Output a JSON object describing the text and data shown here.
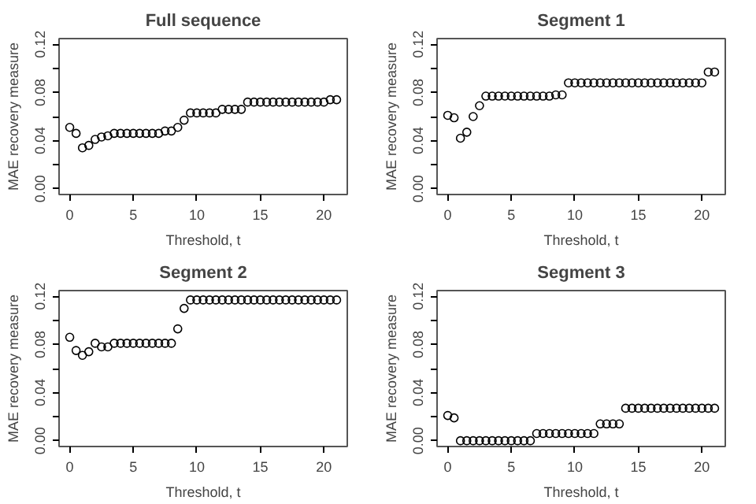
{
  "chart_data": [
    {
      "type": "scatter",
      "title": "Full sequence",
      "xlabel": "Threshold, t",
      "ylabel": "MAE recovery measure",
      "marker": "circle",
      "grid": false,
      "xlim": [
        -0.84,
        21.84
      ],
      "ylim": [
        -0.0048,
        0.1248
      ],
      "xticks": [
        0,
        5,
        10,
        15,
        20
      ],
      "yticks": [
        {
          "value": 0,
          "label": "0.00"
        },
        {
          "value": 0.02,
          "label": null
        },
        {
          "value": 0.04,
          "label": "0.04"
        },
        {
          "value": 0.06,
          "label": null
        },
        {
          "value": 0.08,
          "label": "0.08"
        },
        {
          "value": 0.1,
          "label": null
        },
        {
          "value": 0.12,
          "label": "0.12"
        }
      ],
      "series": [
        {
          "color": "#000000",
          "x": [
            0,
            0.5,
            1,
            1.5,
            2,
            2.5,
            3,
            3.5,
            4,
            4.5,
            5,
            5.5,
            6,
            6.5,
            7,
            7.5,
            8,
            8.5,
            9,
            9.5,
            10,
            10.5,
            11,
            11.5,
            12,
            12.5,
            13,
            13.5,
            14,
            14.5,
            15,
            15.5,
            16,
            16.5,
            17,
            17.5,
            18,
            18.5,
            19,
            19.5,
            20,
            20.5,
            21
          ],
          "values": [
            0.051,
            0.046,
            0.034,
            0.036,
            0.041,
            0.043,
            0.044,
            0.046,
            0.046,
            0.046,
            0.046,
            0.046,
            0.046,
            0.046,
            0.046,
            0.048,
            0.048,
            0.051,
            0.057,
            0.063,
            0.063,
            0.063,
            0.063,
            0.063,
            0.066,
            0.066,
            0.066,
            0.066,
            0.072,
            0.072,
            0.072,
            0.072,
            0.072,
            0.072,
            0.072,
            0.072,
            0.072,
            0.072,
            0.072,
            0.072,
            0.072,
            0.074,
            0.074
          ]
        }
      ]
    },
    {
      "type": "scatter",
      "title": "Segment 1",
      "xlabel": "Threshold, t",
      "ylabel": "MAE recovery measure",
      "marker": "circle",
      "grid": false,
      "xlim": [
        -0.84,
        21.84
      ],
      "ylim": [
        -0.0048,
        0.1248
      ],
      "xticks": [
        0,
        5,
        10,
        15,
        20
      ],
      "yticks": [
        {
          "value": 0,
          "label": "0.00"
        },
        {
          "value": 0.02,
          "label": null
        },
        {
          "value": 0.04,
          "label": "0.04"
        },
        {
          "value": 0.06,
          "label": null
        },
        {
          "value": 0.08,
          "label": "0.08"
        },
        {
          "value": 0.1,
          "label": null
        },
        {
          "value": 0.12,
          "label": "0.12"
        }
      ],
      "series": [
        {
          "color": "#000000",
          "x": [
            0,
            0.5,
            1,
            1.5,
            2,
            2.5,
            3,
            3.5,
            4,
            4.5,
            5,
            5.5,
            6,
            6.5,
            7,
            7.5,
            8,
            8.5,
            9,
            9.5,
            10,
            10.5,
            11,
            11.5,
            12,
            12.5,
            13,
            13.5,
            14,
            14.5,
            15,
            15.5,
            16,
            16.5,
            17,
            17.5,
            18,
            18.5,
            19,
            19.5,
            20,
            20.5,
            21
          ],
          "values": [
            0.061,
            0.059,
            0.042,
            0.047,
            0.06,
            0.069,
            0.077,
            0.077,
            0.077,
            0.077,
            0.077,
            0.077,
            0.077,
            0.077,
            0.077,
            0.077,
            0.077,
            0.078,
            0.078,
            0.088,
            0.088,
            0.088,
            0.088,
            0.088,
            0.088,
            0.088,
            0.088,
            0.088,
            0.088,
            0.088,
            0.088,
            0.088,
            0.088,
            0.088,
            0.088,
            0.088,
            0.088,
            0.088,
            0.088,
            0.088,
            0.088,
            0.097,
            0.097
          ]
        }
      ]
    },
    {
      "type": "scatter",
      "title": "Segment 2",
      "xlabel": "Threshold, t",
      "ylabel": "MAE recovery measure",
      "marker": "circle",
      "grid": false,
      "xlim": [
        -0.84,
        21.84
      ],
      "ylim": [
        -0.0048,
        0.1248
      ],
      "xticks": [
        0,
        5,
        10,
        15,
        20
      ],
      "yticks": [
        {
          "value": 0,
          "label": "0.00"
        },
        {
          "value": 0.02,
          "label": null
        },
        {
          "value": 0.04,
          "label": "0.04"
        },
        {
          "value": 0.06,
          "label": null
        },
        {
          "value": 0.08,
          "label": "0.08"
        },
        {
          "value": 0.1,
          "label": null
        },
        {
          "value": 0.12,
          "label": "0.12"
        }
      ],
      "series": [
        {
          "color": "#000000",
          "x": [
            0,
            0.5,
            1,
            1.5,
            2,
            2.5,
            3,
            3.5,
            4,
            4.5,
            5,
            5.5,
            6,
            6.5,
            7,
            7.5,
            8,
            8.5,
            9,
            9.5,
            10,
            10.5,
            11,
            11.5,
            12,
            12.5,
            13,
            13.5,
            14,
            14.5,
            15,
            15.5,
            16,
            16.5,
            17,
            17.5,
            18,
            18.5,
            19,
            19.5,
            20,
            20.5,
            21
          ],
          "values": [
            0.086,
            0.075,
            0.071,
            0.074,
            0.081,
            0.078,
            0.078,
            0.081,
            0.081,
            0.081,
            0.081,
            0.081,
            0.081,
            0.081,
            0.081,
            0.081,
            0.081,
            0.093,
            0.11,
            0.117,
            0.117,
            0.117,
            0.117,
            0.117,
            0.117,
            0.117,
            0.117,
            0.117,
            0.117,
            0.117,
            0.117,
            0.117,
            0.117,
            0.117,
            0.117,
            0.117,
            0.117,
            0.117,
            0.117,
            0.117,
            0.117,
            0.117,
            0.117
          ]
        }
      ]
    },
    {
      "type": "scatter",
      "title": "Segment 3",
      "xlabel": "Threshold, t",
      "ylabel": "MAE recovery measure",
      "marker": "circle",
      "grid": false,
      "xlim": [
        -0.84,
        21.84
      ],
      "ylim": [
        -0.0048,
        0.1248
      ],
      "xticks": [
        0,
        5,
        10,
        15,
        20
      ],
      "yticks": [
        {
          "value": 0,
          "label": "0.00"
        },
        {
          "value": 0.02,
          "label": null
        },
        {
          "value": 0.04,
          "label": "0.04"
        },
        {
          "value": 0.06,
          "label": null
        },
        {
          "value": 0.08,
          "label": "0.08"
        },
        {
          "value": 0.1,
          "label": null
        },
        {
          "value": 0.12,
          "label": "0.12"
        }
      ],
      "series": [
        {
          "color": "#000000",
          "x": [
            0,
            0.5,
            1,
            1.5,
            2,
            2.5,
            3,
            3.5,
            4,
            4.5,
            5,
            5.5,
            6,
            6.5,
            7,
            7.5,
            8,
            8.5,
            9,
            9.5,
            10,
            10.5,
            11,
            11.5,
            12,
            12.5,
            13,
            13.5,
            14,
            14.5,
            15,
            15.5,
            16,
            16.5,
            17,
            17.5,
            18,
            18.5,
            19,
            19.5,
            20,
            20.5,
            21
          ],
          "values": [
            0.021,
            0.019,
            0,
            0,
            0,
            0,
            0,
            0,
            0,
            0,
            0,
            0,
            0,
            0,
            0.006,
            0.006,
            0.006,
            0.006,
            0.006,
            0.006,
            0.006,
            0.006,
            0.006,
            0.006,
            0.014,
            0.014,
            0.014,
            0.014,
            0.027,
            0.027,
            0.027,
            0.027,
            0.027,
            0.027,
            0.027,
            0.027,
            0.027,
            0.027,
            0.027,
            0.027,
            0.027,
            0.027,
            0.027
          ]
        }
      ]
    }
  ]
}
